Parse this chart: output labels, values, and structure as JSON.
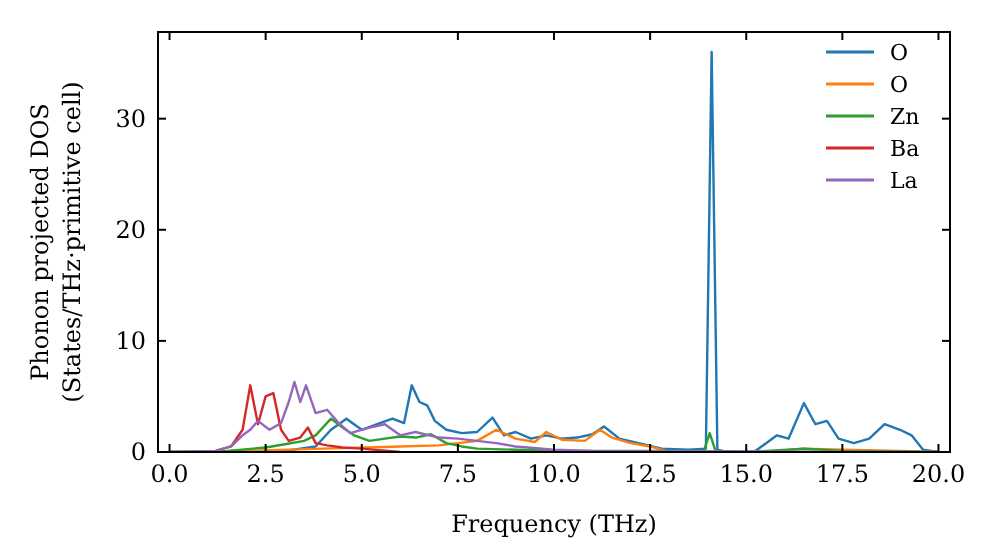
{
  "chart_data": {
    "type": "line",
    "xlabel": "Frequency (THz)",
    "ylabel": "Phonon projected DOS\n(States/THz·primitive cell)",
    "xlim": [
      -0.3,
      20.3
    ],
    "ylim": [
      0,
      37.8
    ],
    "xticks": [
      {
        "value": 0,
        "label": "0.0"
      },
      {
        "value": 2.5,
        "label": "2.5"
      },
      {
        "value": 5,
        "label": "5.0"
      },
      {
        "value": 7.5,
        "label": "7.5"
      },
      {
        "value": 10,
        "label": "10.0"
      },
      {
        "value": 12.5,
        "label": "12.5"
      },
      {
        "value": 15,
        "label": "15.0"
      },
      {
        "value": 17.5,
        "label": "17.5"
      },
      {
        "value": 20,
        "label": "20.0"
      }
    ],
    "yticks": [
      0,
      10,
      20,
      30
    ],
    "legend": "top right",
    "grid": false,
    "series": [
      {
        "name": "O",
        "color": "#1f77b4",
        "x": [
          0,
          2,
          3,
          3.8,
          4.2,
          4.6,
          5,
          5.4,
          5.8,
          6.1,
          6.3,
          6.5,
          6.7,
          6.9,
          7.2,
          7.6,
          8,
          8.4,
          8.7,
          9,
          9.4,
          9.8,
          10.2,
          10.6,
          11,
          11.3,
          11.7,
          12.2,
          12.8,
          13.5,
          13.95,
          14.1,
          14.25,
          14.5,
          15.2,
          15.8,
          16.1,
          16.5,
          16.8,
          17.1,
          17.4,
          17.8,
          18.2,
          18.6,
          19,
          19.3,
          19.6,
          20
        ],
        "values": [
          0,
          0,
          0.1,
          0.5,
          2,
          3,
          2,
          2.5,
          3,
          2.6,
          6,
          4.5,
          4.2,
          2.8,
          2,
          1.7,
          1.8,
          3.1,
          1.5,
          1.8,
          1.2,
          1.5,
          1.2,
          1.3,
          1.6,
          2.3,
          1.2,
          0.8,
          0.3,
          0.2,
          0.3,
          36,
          0.2,
          0,
          0,
          1.5,
          1.2,
          4.4,
          2.5,
          2.8,
          1.2,
          0.8,
          1.2,
          2.5,
          2,
          1.5,
          0.2,
          0
        ]
      },
      {
        "name": "O",
        "color": "#ff7f0e",
        "x": [
          0,
          2,
          4,
          6,
          7,
          7.5,
          8,
          8.5,
          9,
          9.5,
          9.8,
          10.2,
          10.8,
          11.2,
          11.5,
          12,
          12.5,
          13,
          15.5,
          16.5,
          17.5,
          19,
          20
        ],
        "values": [
          0,
          0.1,
          0.3,
          0.5,
          0.6,
          0.8,
          1,
          2,
          1.2,
          0.9,
          1.8,
          1.1,
          1,
          2,
          1.3,
          0.8,
          0.5,
          0,
          0,
          0.3,
          0.2,
          0.1,
          0
        ]
      },
      {
        "name": "Zn",
        "color": "#2ca02c",
        "x": [
          0,
          1.5,
          2.5,
          3,
          3.5,
          3.8,
          4.2,
          4.5,
          4.8,
          5.2,
          5.6,
          6,
          6.4,
          6.8,
          7.2,
          7.6,
          8,
          9,
          10,
          13.9,
          14.05,
          14.2,
          15,
          16.5,
          17.5,
          20
        ],
        "values": [
          0,
          0.1,
          0.4,
          0.7,
          1,
          1.5,
          3,
          2.2,
          1.5,
          1,
          1.2,
          1.4,
          1.3,
          1.6,
          0.8,
          0.5,
          0.3,
          0.2,
          0.1,
          0.1,
          1.7,
          0.1,
          0,
          0.3,
          0.1,
          0
        ]
      },
      {
        "name": "Ba",
        "color": "#d62728",
        "x": [
          1.2,
          1.6,
          1.9,
          2.1,
          2.3,
          2.5,
          2.7,
          2.9,
          3.1,
          3.4,
          3.6,
          3.8,
          4.1,
          4.5,
          5,
          6
        ],
        "values": [
          0.1,
          0.5,
          2,
          6,
          2.5,
          5,
          5.3,
          2,
          1,
          1.3,
          2.2,
          0.8,
          0.6,
          0.4,
          0.3,
          0
        ]
      },
      {
        "name": "La",
        "color": "#9467bd",
        "x": [
          0,
          1.2,
          1.6,
          1.9,
          2.1,
          2.3,
          2.6,
          2.9,
          3.1,
          3.25,
          3.4,
          3.55,
          3.8,
          4.1,
          4.4,
          4.7,
          5.2,
          5.6,
          6,
          6.4,
          7,
          7.5,
          8,
          8.5,
          9,
          10,
          11,
          20
        ],
        "values": [
          0,
          0.1,
          0.5,
          1.5,
          2,
          2.8,
          2,
          2.6,
          4.5,
          6.3,
          4.5,
          6,
          3.5,
          3.8,
          2.6,
          1.7,
          2.2,
          2.5,
          1.5,
          1.8,
          1.3,
          1.2,
          1,
          0.8,
          0.5,
          0.2,
          0.1,
          0
        ]
      }
    ]
  }
}
